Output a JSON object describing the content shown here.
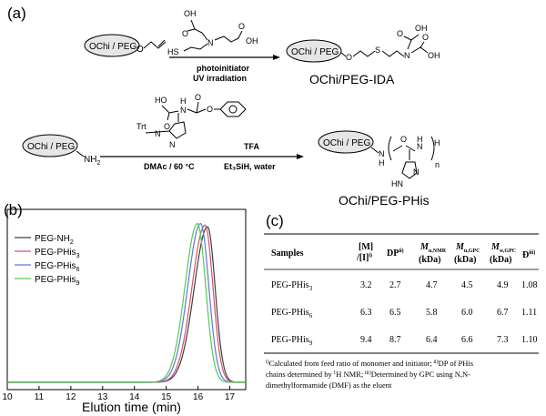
{
  "panel_a": {
    "label": "(a)",
    "reagent_top": "photoinitiator",
    "reagent_bottom": "UV irradiation",
    "start_material": "OChi / PEG",
    "product_1": "OChi / PEG",
    "product_1_caption": "OChi/PEG-IDA",
    "reaction2": {
      "start": "OChi / PEG",
      "start_group": "NH",
      "start_group_sub": "2",
      "protect": "Trt",
      "cond_1": "DMAc / 60 °C",
      "reagent_1": "TFA",
      "reagent_2": "Et₃SiH, water",
      "product": "OChi / PEG",
      "product_caption": "OChi/PEG-PHis",
      "n_label": "n",
      "h_label": "H"
    }
  },
  "panel_b": {
    "label": "(b)",
    "xlabel": "Elution time (min)",
    "legend": [
      {
        "name": "PEG-NH",
        "sub": "2",
        "color": "#404040"
      },
      {
        "name": "PEG-PHis",
        "sub": "3",
        "color": "#d2536e"
      },
      {
        "name": "PEG-PHis",
        "sub": "6",
        "color": "#5b7bd4"
      },
      {
        "name": "PEG-PHis",
        "sub": "9",
        "color": "#58c65a"
      }
    ]
  },
  "chart_data": {
    "type": "line",
    "title": "",
    "xlabel": "Elution time (min)",
    "ylabel": "",
    "xlim": [
      10,
      17.5
    ],
    "xticks": [
      "10",
      "11",
      "12",
      "13",
      "14",
      "15",
      "16",
      "17"
    ],
    "series": [
      {
        "name": "PEG-NH2",
        "color": "#404040",
        "peak_x": 16.3,
        "sigma_left": 0.42,
        "sigma_right": 0.24,
        "height": 0.96
      },
      {
        "name": "PEG-PHis3",
        "color": "#d2536e",
        "peak_x": 16.22,
        "sigma_left": 0.41,
        "sigma_right": 0.25,
        "height": 0.97
      },
      {
        "name": "PEG-PHis6",
        "color": "#5b7bd4",
        "peak_x": 16.08,
        "sigma_left": 0.4,
        "sigma_right": 0.26,
        "height": 0.98
      },
      {
        "name": "PEG-PHis9",
        "color": "#58c65a",
        "peak_x": 15.98,
        "sigma_left": 0.39,
        "sigma_right": 0.26,
        "height": 0.98
      }
    ]
  },
  "panel_c": {
    "label": "(c)",
    "headers": [
      "Samples",
      "[M]",
      "/[I]",
      "DP",
      "M",
      "M",
      "M",
      "Đ"
    ],
    "header_units": [
      "",
      "",
      "",
      "",
      "(kDa)",
      "(kDa)",
      "(kDa)",
      ""
    ],
    "rows": [
      {
        "name": "PEG-PHis",
        "sub": "3",
        "cells": [
          "3.2",
          "2.7",
          "4.7",
          "4.5",
          "4.9",
          "1.08"
        ]
      },
      {
        "name": "PEG-PHis",
        "sub": "6",
        "cells": [
          "6.3",
          "6.5",
          "5.8",
          "6.0",
          "6.7",
          "1.11"
        ]
      },
      {
        "name": "PEG-PHis",
        "sub": "9",
        "cells": [
          "9.4",
          "8.7",
          "6.4",
          "6.6",
          "7.3",
          "1.10"
        ]
      }
    ],
    "footnote_1": "Calculated from feed ratio of monomer and initiator;",
    "footnote_2": "DP of PHis",
    "footnote_3": "chains determined by",
    "footnote_4": "H NMR;",
    "footnote_5": "Determined by GPC using N,N-",
    "footnote_6": "dimethylformamide (DMF) as the eluent"
  }
}
